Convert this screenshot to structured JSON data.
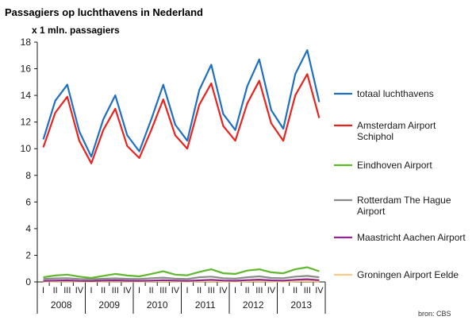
{
  "chart_data": {
    "type": "line",
    "title": "Passagiers op luchthavens in Nederland",
    "ylabel": "x 1 mln. passagiers",
    "ylim": [
      0,
      18
    ],
    "yticks": [
      0,
      2,
      4,
      6,
      8,
      10,
      12,
      14,
      16,
      18
    ],
    "grid": false,
    "legend_position": "right",
    "source": "bron: CBS",
    "years": [
      "2008",
      "2009",
      "2010",
      "2011",
      "2012",
      "2013"
    ],
    "quarters": [
      "I",
      "II",
      "III",
      "IV"
    ],
    "x": [
      "2008 I",
      "2008 II",
      "2008 III",
      "2008 IV",
      "2009 I",
      "2009 II",
      "2009 III",
      "2009 IV",
      "2010 I",
      "2010 II",
      "2010 III",
      "2010 IV",
      "2011 I",
      "2011 II",
      "2011 III",
      "2011 IV",
      "2012 I",
      "2012 II",
      "2012 III",
      "2012 IV",
      "2013 I",
      "2013 II",
      "2013 III",
      "2013 IV"
    ],
    "series": [
      {
        "name": "totaal luchthavens",
        "color": "#1f6fc0",
        "values": [
          10.7,
          13.6,
          14.8,
          11.3,
          9.4,
          12.2,
          14.0,
          11.0,
          9.8,
          12.2,
          14.8,
          11.8,
          10.6,
          14.4,
          16.3,
          12.6,
          11.4,
          14.7,
          16.7,
          12.9,
          11.5,
          15.6,
          17.4,
          13.5
        ]
      },
      {
        "name": "Amsterdam Airport Schiphol",
        "color": "#e8231f",
        "values": [
          10.1,
          12.7,
          13.9,
          10.6,
          8.9,
          11.4,
          13.0,
          10.2,
          9.3,
          11.4,
          13.7,
          11.0,
          10.0,
          13.3,
          14.9,
          11.7,
          10.6,
          13.4,
          15.1,
          11.9,
          10.6,
          14.0,
          15.6,
          12.3
        ]
      },
      {
        "name": "Eindhoven Airport",
        "color": "#5fb82e",
        "values": [
          0.35,
          0.48,
          0.55,
          0.4,
          0.3,
          0.45,
          0.6,
          0.48,
          0.42,
          0.6,
          0.8,
          0.55,
          0.5,
          0.75,
          0.95,
          0.65,
          0.6,
          0.85,
          0.95,
          0.72,
          0.65,
          0.95,
          1.1,
          0.8
        ]
      },
      {
        "name": "Rotterdam The Hague Airport",
        "color": "#8a8a8a",
        "values": [
          0.22,
          0.26,
          0.28,
          0.22,
          0.2,
          0.24,
          0.27,
          0.23,
          0.22,
          0.28,
          0.32,
          0.25,
          0.22,
          0.35,
          0.4,
          0.28,
          0.25,
          0.35,
          0.42,
          0.3,
          0.28,
          0.4,
          0.45,
          0.35
        ]
      },
      {
        "name": "Maastricht Aachen Airport",
        "color": "#8b2a8b",
        "values": [
          0.08,
          0.1,
          0.12,
          0.08,
          0.07,
          0.1,
          0.12,
          0.09,
          0.08,
          0.1,
          0.13,
          0.1,
          0.08,
          0.12,
          0.16,
          0.11,
          0.09,
          0.14,
          0.17,
          0.12,
          0.1,
          0.16,
          0.2,
          0.13
        ]
      },
      {
        "name": "Groningen Airport Eelde",
        "color": "#f5c98a",
        "values": [
          0.03,
          0.04,
          0.05,
          0.03,
          0.03,
          0.04,
          0.05,
          0.04,
          0.03,
          0.05,
          0.06,
          0.04,
          0.03,
          0.05,
          0.06,
          0.04,
          0.03,
          0.05,
          0.06,
          0.04,
          0.03,
          0.05,
          0.06,
          0.04
        ]
      }
    ],
    "legend": [
      {
        "lines": [
          "totaal luchthavens"
        ]
      },
      {
        "lines": [
          "Amsterdam Airport",
          "Schiphol"
        ]
      },
      {
        "lines": [
          "Eindhoven Airport"
        ]
      },
      {
        "lines": [
          "Rotterdam The Hague",
          "Airport"
        ]
      },
      {
        "lines": [
          "Maastricht Aachen Airport"
        ]
      },
      {
        "lines": [
          "Groningen Airport Eelde"
        ]
      }
    ]
  }
}
